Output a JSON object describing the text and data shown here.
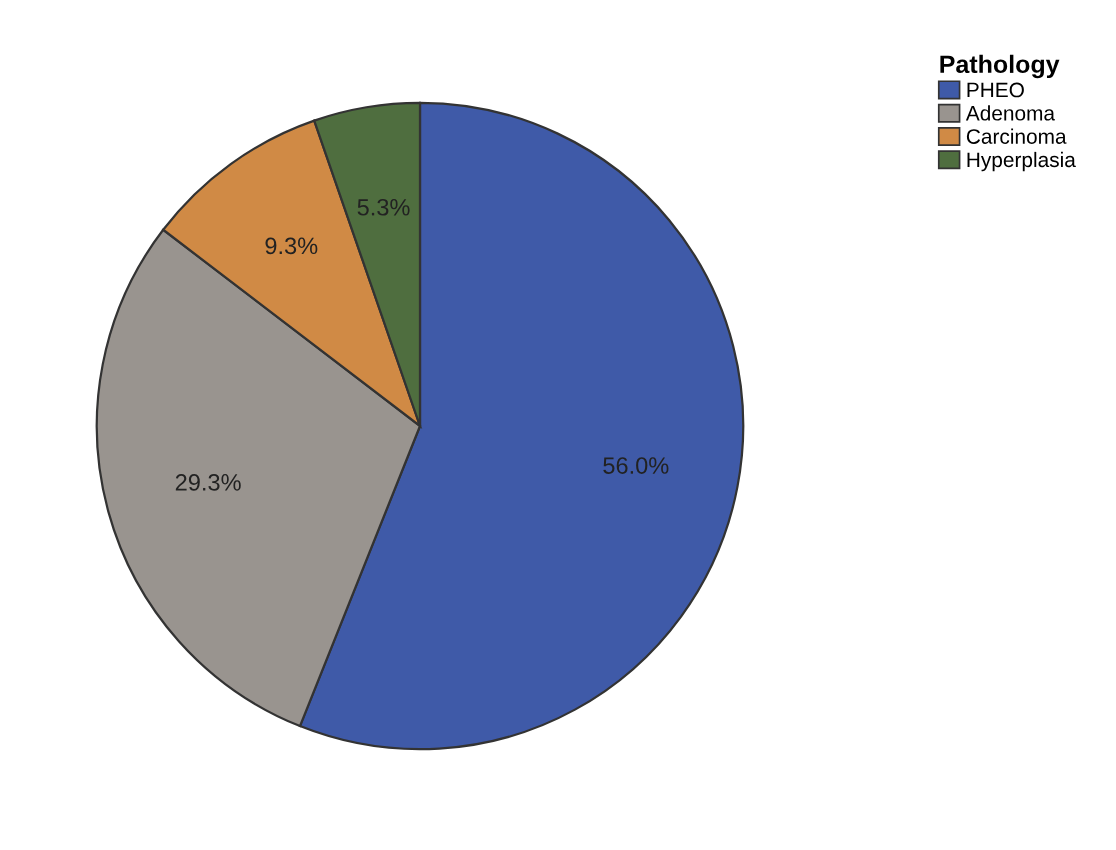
{
  "chart_data": {
    "type": "pie",
    "legend_title": "Pathology",
    "legend": "top right",
    "categories": [
      "PHEO",
      "Adenoma",
      "Carcinoma",
      "Hyperplasia"
    ],
    "values": [
      56.0,
      29.3,
      9.3,
      5.3
    ],
    "value_labels": [
      "56.0%",
      "29.3%",
      "9.3%",
      "5.3%"
    ],
    "colors": [
      "#3f5aa8",
      "#99948f",
      "#d08a45",
      "#4f6e3f"
    ]
  }
}
